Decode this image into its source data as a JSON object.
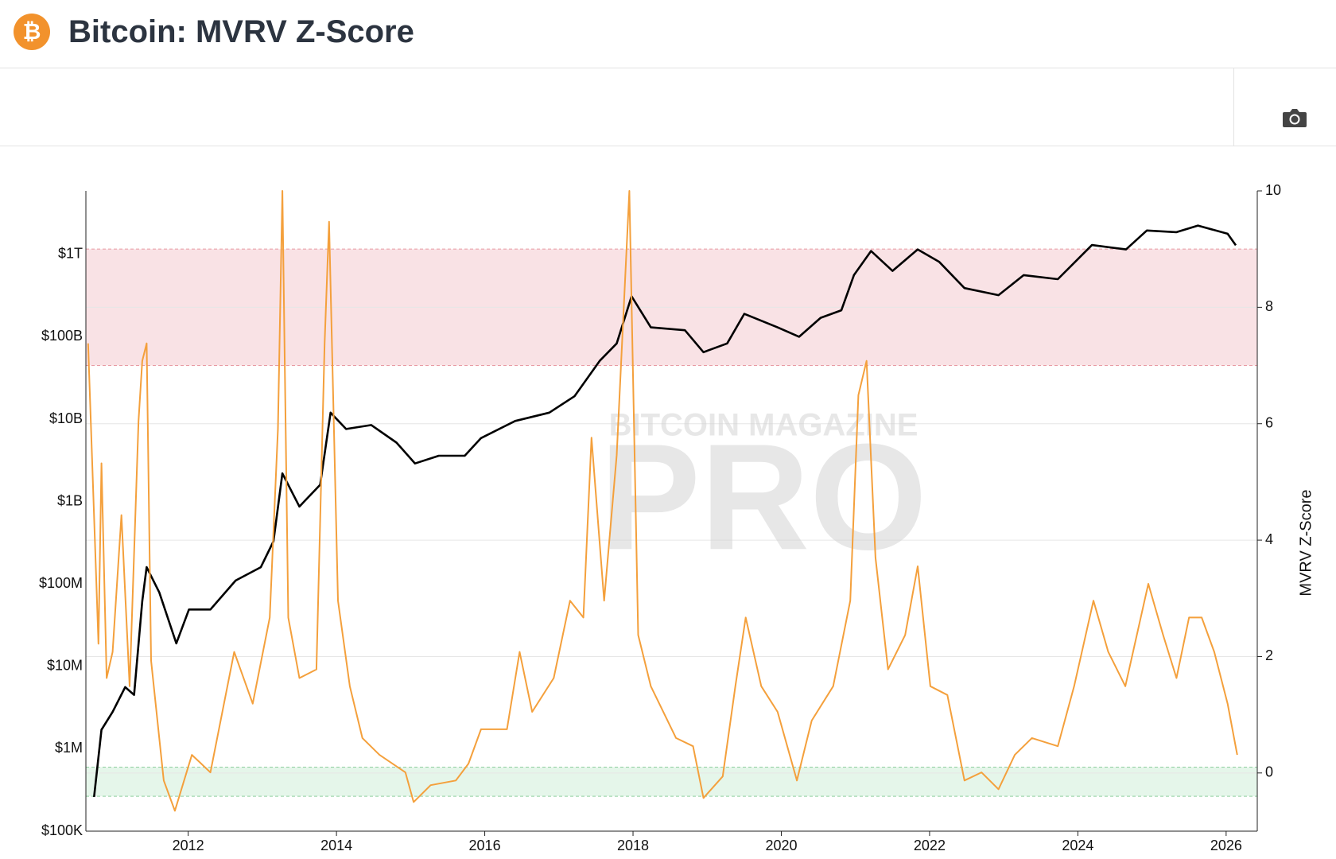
{
  "header": {
    "icon": "₿",
    "title": "Bitcoin: MVRV Z-Score"
  },
  "chart_data": {
    "type": "line",
    "watermark": [
      "BITCOIN MAGAZINE",
      "PRO"
    ],
    "y2_label": "MVRV Z-Score",
    "xlim": [
      2010.62,
      2026.42
    ],
    "xticks": [
      2012,
      2014,
      2016,
      2018,
      2020,
      2022,
      2024,
      2026
    ],
    "ylim": [
      100000,
      5900000000000
    ],
    "y_scale": "log",
    "yticks": [
      {
        "value": 100000,
        "label": "$100K"
      },
      {
        "value": 1000000,
        "label": "$1M"
      },
      {
        "value": 10000000,
        "label": "$10M"
      },
      {
        "value": 100000000,
        "label": "$100M"
      },
      {
        "value": 1000000000,
        "label": "$1B"
      },
      {
        "value": 10000000000,
        "label": "$10B"
      },
      {
        "value": 100000000000,
        "label": "$100B"
      },
      {
        "value": 1000000000000,
        "label": "$1T"
      }
    ],
    "y2lim": [
      -1,
      10
    ],
    "y2ticks": [
      0,
      2,
      4,
      6,
      8,
      10
    ],
    "grid": "y2",
    "zones": [
      {
        "axis": "y2",
        "from": 7,
        "to": 9,
        "color": "#f9e2e5",
        "edge": "#e89aa3"
      },
      {
        "axis": "y2",
        "from": -0.4,
        "to": 0.1,
        "color": "#e5f6ea",
        "edge": "#8fcf9f"
      }
    ],
    "series": [
      {
        "color": "#000000",
        "x": [
          2010.73,
          2010.83,
          2010.98,
          2011.15,
          2011.27,
          2011.38,
          2011.44,
          2011.61,
          2011.84,
          2012.01,
          2012.3,
          2012.64,
          2012.98,
          2013.15,
          2013.27,
          2013.5,
          2013.78,
          2013.92,
          2014.13,
          2014.47,
          2014.81,
          2015.06,
          2015.38,
          2015.73,
          2015.95,
          2016.41,
          2016.87,
          2017.21,
          2017.55,
          2017.78,
          2017.98,
          2018.24,
          2018.7,
          2018.95,
          2019.27,
          2019.5,
          2019.95,
          2020.24,
          2020.53,
          2020.81,
          2020.98,
          2021.21,
          2021.5,
          2021.84,
          2022.13,
          2022.47,
          2022.93,
          2023.27,
          2023.73,
          2024.19,
          2024.65,
          2024.93,
          2025.33,
          2025.62,
          2026.02,
          2026.13
        ],
        "values": [
          260000,
          1700000,
          2800000,
          5600000,
          4500000,
          62000000,
          160000000,
          79000000,
          19000000,
          49000000,
          49000000,
          110000000,
          160000000,
          330000000,
          2200000000,
          870000000,
          1600000000,
          12000000000,
          7600000000,
          8500000000,
          5200000000,
          2900000000,
          3600000000,
          3600000000,
          5900000000,
          9500000000,
          12000000000,
          19000000000,
          51000000000,
          83000000000,
          310000000000,
          130000000000,
          120000000000,
          65000000000,
          83000000000,
          190000000000,
          130000000000,
          100000000000,
          170000000000,
          210000000000,
          560000000000,
          1100000000000,
          630000000000,
          1150000000000,
          810000000000,
          390000000000,
          320000000000,
          560000000000,
          500000000000,
          1300000000000,
          1150000000000,
          1950000000000,
          1860000000000,
          2240000000000,
          1780000000000,
          1290000000000
        ]
      },
      {
        "color": "#f4a03c",
        "axis": "y2",
        "x": [
          2010.65,
          2010.79,
          2010.83,
          2010.9,
          2010.98,
          2011.1,
          2011.21,
          2011.33,
          2011.38,
          2011.44,
          2011.5,
          2011.67,
          2011.82,
          2012.05,
          2012.3,
          2012.62,
          2012.87,
          2013.1,
          2013.21,
          2013.27,
          2013.35,
          2013.5,
          2013.73,
          2013.84,
          2013.9,
          2014.02,
          2014.18,
          2014.35,
          2014.58,
          2014.93,
          2015.04,
          2015.27,
          2015.61,
          2015.78,
          2015.95,
          2016.3,
          2016.47,
          2016.64,
          2016.93,
          2017.15,
          2017.33,
          2017.44,
          2017.61,
          2017.78,
          2017.95,
          2018.07,
          2018.24,
          2018.58,
          2018.81,
          2018.95,
          2019.21,
          2019.38,
          2019.52,
          2019.73,
          2019.95,
          2020.21,
          2020.41,
          2020.7,
          2020.93,
          2021.04,
          2021.15,
          2021.27,
          2021.44,
          2021.67,
          2021.84,
          2022.01,
          2022.24,
          2022.47,
          2022.7,
          2022.93,
          2023.15,
          2023.38,
          2023.73,
          2023.95,
          2024.21,
          2024.41,
          2024.64,
          2024.95,
          2025.15,
          2025.33,
          2025.5,
          2025.67,
          2025.84,
          2026.02,
          2026.15
        ],
        "values": [
          7.38,
          2.22,
          5.32,
          1.63,
          2.08,
          4.43,
          1.49,
          6.05,
          7.08,
          7.38,
          1.93,
          -0.13,
          -0.65,
          0.31,
          0.01,
          2.08,
          1.19,
          2.67,
          5.91,
          10.0,
          2.67,
          1.63,
          1.78,
          7.38,
          9.47,
          2.96,
          1.49,
          0.6,
          0.31,
          0.01,
          -0.5,
          -0.21,
          -0.13,
          0.16,
          0.75,
          0.75,
          2.08,
          1.05,
          1.63,
          2.96,
          2.67,
          5.76,
          2.96,
          5.46,
          10.0,
          2.37,
          1.49,
          0.6,
          0.46,
          -0.43,
          -0.06,
          1.49,
          2.67,
          1.49,
          1.05,
          -0.13,
          0.9,
          1.49,
          2.96,
          6.49,
          7.08,
          3.7,
          1.78,
          2.37,
          3.55,
          1.49,
          1.34,
          -0.13,
          0.01,
          -0.28,
          0.31,
          0.6,
          0.46,
          1.49,
          2.96,
          2.08,
          1.49,
          3.25,
          2.37,
          1.63,
          2.67,
          2.67,
          2.08,
          1.19,
          0.31
        ]
      }
    ]
  }
}
